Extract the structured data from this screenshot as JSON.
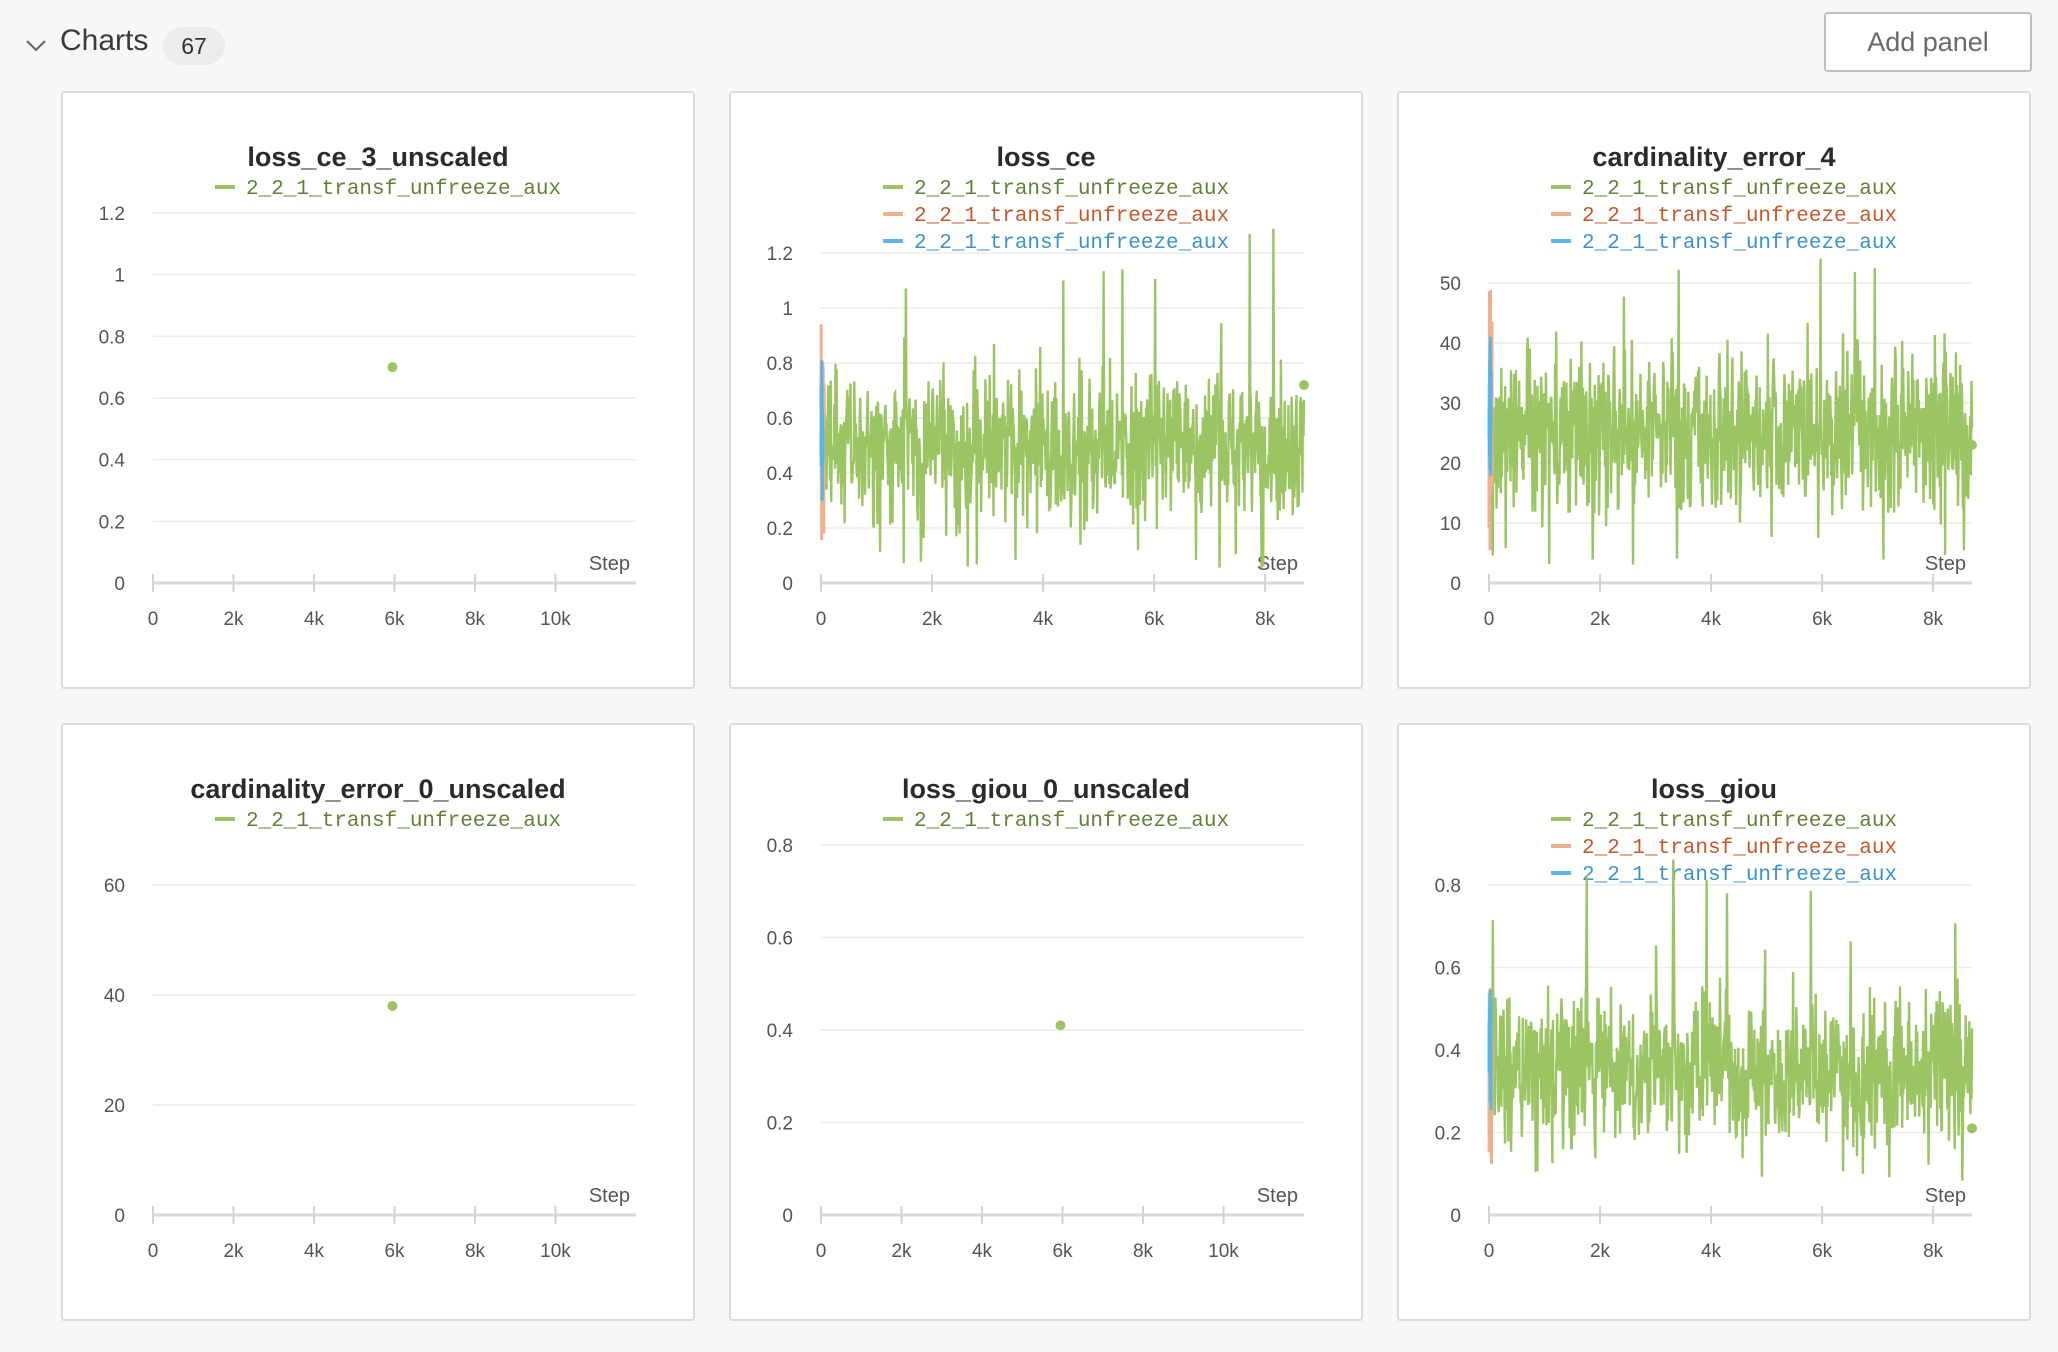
{
  "section": {
    "title": "Charts",
    "count": "67",
    "add_panel_label": "Add panel"
  },
  "icons": {
    "collapse": "chevron-down-icon"
  },
  "colors": {
    "green": "#9bc563",
    "orange": "#f0b08e",
    "blue": "#5ab5e4",
    "legend_green_text": "#5f8234",
    "legend_orange_text": "#c4582b",
    "legend_blue_text": "#3a93c9"
  },
  "chart_data": [
    {
      "type": "scatter",
      "title": "loss_ce_3_unscaled",
      "legend": [
        "2_2_1_transf_unfreeze_aux"
      ],
      "xlabel": "Step",
      "x_ticks": [
        "0",
        "2k",
        "4k",
        "6k",
        "8k",
        "10k"
      ],
      "y_ticks": [
        "0",
        "0.2",
        "0.4",
        "0.6",
        "0.8",
        "1",
        "1.2"
      ],
      "xlim": [
        0,
        12000
      ],
      "ylim": [
        0,
        1.2
      ],
      "series": [
        {
          "name": "2_2_1_transf_unfreeze_aux",
          "color": "#9bc563",
          "points": [
            [
              5950,
              0.7
            ]
          ]
        }
      ]
    },
    {
      "type": "line",
      "title": "loss_ce",
      "legend": [
        "2_2_1_transf_unfreeze_aux",
        "2_2_1_transf_unfreeze_aux",
        "2_2_1_transf_unfreeze_aux"
      ],
      "xlabel": "Step",
      "x_ticks": [
        "0",
        "2k",
        "4k",
        "6k",
        "8k"
      ],
      "y_ticks": [
        "0",
        "0.2",
        "0.4",
        "0.6",
        "0.8",
        "1",
        "1.2"
      ],
      "xlim": [
        0,
        8700
      ],
      "ylim": [
        0,
        1.2
      ],
      "series": [
        {
          "name": "2_2_1_transf_unfreeze_aux",
          "color": "#9bc563",
          "x_range": [
            0,
            8700
          ],
          "mean": 0.5,
          "spread": 0.15,
          "max": 1.3,
          "min": 0.05,
          "last": 0.72
        },
        {
          "name": "2_2_1_transf_unfreeze_aux",
          "color": "#f0b08e",
          "x_range": [
            0,
            60
          ],
          "mean": 0.55,
          "spread": 0.2,
          "max": 0.95,
          "min": 0.1
        },
        {
          "name": "2_2_1_transf_unfreeze_aux",
          "color": "#5ab5e4",
          "x_range": [
            0,
            40
          ],
          "mean": 0.55,
          "spread": 0.15,
          "max": 0.9,
          "min": 0.3
        }
      ]
    },
    {
      "type": "line",
      "title": "cardinality_error_4",
      "legend": [
        "2_2_1_transf_unfreeze_aux",
        "2_2_1_transf_unfreeze_aux",
        "2_2_1_transf_unfreeze_aux"
      ],
      "xlabel": "Step",
      "x_ticks": [
        "0",
        "2k",
        "4k",
        "6k",
        "8k"
      ],
      "y_ticks": [
        "0",
        "10",
        "20",
        "30",
        "40",
        "50"
      ],
      "xlim": [
        0,
        8700
      ],
      "ylim": [
        0,
        55
      ],
      "series": [
        {
          "name": "2_2_1_transf_unfreeze_aux",
          "color": "#9bc563",
          "x_range": [
            0,
            8700
          ],
          "mean": 25,
          "spread": 8,
          "max": 59,
          "min": 0,
          "last": 23
        },
        {
          "name": "2_2_1_transf_unfreeze_aux",
          "color": "#f0b08e",
          "x_range": [
            0,
            60
          ],
          "mean": 30,
          "spread": 12,
          "max": 52,
          "min": 2
        },
        {
          "name": "2_2_1_transf_unfreeze_aux",
          "color": "#5ab5e4",
          "x_range": [
            0,
            40
          ],
          "mean": 29,
          "spread": 8,
          "max": 45,
          "min": 10
        }
      ]
    },
    {
      "type": "scatter",
      "title": "cardinality_error_0_unscaled",
      "legend": [
        "2_2_1_transf_unfreeze_aux"
      ],
      "xlabel": "Step",
      "x_ticks": [
        "0",
        "2k",
        "4k",
        "6k",
        "8k",
        "10k"
      ],
      "y_ticks": [
        "0",
        "20",
        "40",
        "60"
      ],
      "xlim": [
        0,
        12000
      ],
      "ylim": [
        0,
        60
      ],
      "series": [
        {
          "name": "2_2_1_transf_unfreeze_aux",
          "color": "#9bc563",
          "points": [
            [
              5950,
              38
            ]
          ]
        }
      ]
    },
    {
      "type": "scatter",
      "title": "loss_giou_0_unscaled",
      "legend": [
        "2_2_1_transf_unfreeze_aux"
      ],
      "xlabel": "Step",
      "x_ticks": [
        "0",
        "2k",
        "4k",
        "6k",
        "8k",
        "10k"
      ],
      "y_ticks": [
        "0",
        "0.2",
        "0.4",
        "0.6",
        "0.8"
      ],
      "xlim": [
        0,
        12000
      ],
      "ylim": [
        0,
        0.8
      ],
      "series": [
        {
          "name": "2_2_1_transf_unfreeze_aux",
          "color": "#9bc563",
          "points": [
            [
              5950,
              0.41
            ]
          ]
        }
      ]
    },
    {
      "type": "line",
      "title": "loss_giou",
      "legend": [
        "2_2_1_transf_unfreeze_aux",
        "2_2_1_transf_unfreeze_aux",
        "2_2_1_transf_unfreeze_aux"
      ],
      "xlabel": "Step",
      "x_ticks": [
        "0",
        "2k",
        "4k",
        "6k",
        "8k"
      ],
      "y_ticks": [
        "0",
        "0.2",
        "0.4",
        "0.6",
        "0.8"
      ],
      "xlim": [
        0,
        8700
      ],
      "ylim": [
        0,
        0.8
      ],
      "series": [
        {
          "name": "2_2_1_transf_unfreeze_aux",
          "color": "#9bc563",
          "x_range": [
            0,
            8700
          ],
          "mean": 0.35,
          "spread": 0.1,
          "max": 0.91,
          "min": 0.08,
          "last": 0.21
        },
        {
          "name": "2_2_1_transf_unfreeze_aux",
          "color": "#f0b08e",
          "x_range": [
            0,
            60
          ],
          "mean": 0.35,
          "spread": 0.12,
          "max": 0.55,
          "min": 0.12
        },
        {
          "name": "2_2_1_transf_unfreeze_aux",
          "color": "#5ab5e4",
          "x_range": [
            0,
            40
          ],
          "mean": 0.4,
          "spread": 0.1,
          "max": 0.58,
          "min": 0.25
        }
      ]
    }
  ]
}
